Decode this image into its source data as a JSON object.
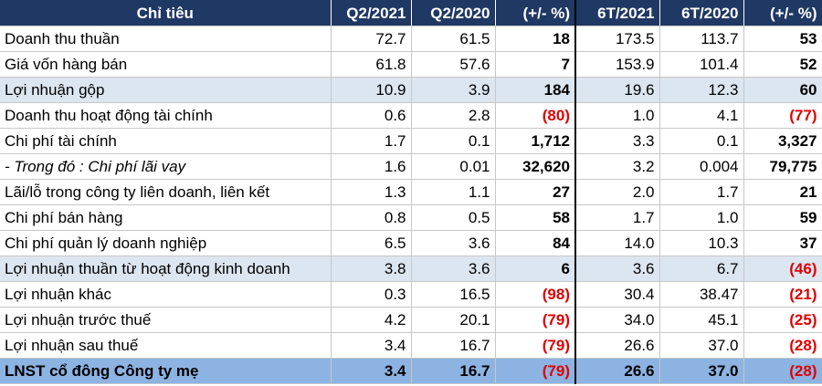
{
  "headers": [
    "Chỉ tiêu",
    "Q2/2021",
    "Q2/2020",
    "(+/- %)",
    "6T/2021",
    "6T/2020",
    "(+/- %)"
  ],
  "rows": [
    {
      "label": "Doanh thu thuần",
      "q2_2021": "72.7",
      "q2_2020": "61.5",
      "q_change": "18",
      "h1_2021": "173.5",
      "h1_2020": "113.7",
      "h_change": "53"
    },
    {
      "label": "Giá vốn hàng bán",
      "q2_2021": "61.8",
      "q2_2020": "57.6",
      "q_change": "7",
      "h1_2021": "153.9",
      "h1_2020": "101.4",
      "h_change": "52"
    },
    {
      "label": "Lợi nhuận gộp",
      "q2_2021": "10.9",
      "q2_2020": "3.9",
      "q_change": "184",
      "h1_2021": "19.6",
      "h1_2020": "12.3",
      "h_change": "60"
    },
    {
      "label": "Doanh thu hoạt động tài chính",
      "q2_2021": "0.6",
      "q2_2020": "2.8",
      "q_change": "(80)",
      "h1_2021": "1.0",
      "h1_2020": "4.1",
      "h_change": "(77)"
    },
    {
      "label": "Chi phí tài chính",
      "q2_2021": "1.7",
      "q2_2020": "0.1",
      "q_change": "1,712",
      "h1_2021": "3.3",
      "h1_2020": "0.1",
      "h_change": "3,327"
    },
    {
      "label": "- Trong đó : Chi phí lãi vay",
      "q2_2021": "1.6",
      "q2_2020": "0.01",
      "q_change": "32,620",
      "h1_2021": "3.2",
      "h1_2020": "0.004",
      "h_change": "79,775"
    },
    {
      "label": "Lãi/lỗ trong công ty liên doanh, liên kết",
      "q2_2021": "1.3",
      "q2_2020": "1.1",
      "q_change": "27",
      "h1_2021": "2.0",
      "h1_2020": "1.7",
      "h_change": "21"
    },
    {
      "label": "Chi phí bán hàng",
      "q2_2021": "0.8",
      "q2_2020": "0.5",
      "q_change": "58",
      "h1_2021": "1.7",
      "h1_2020": "1.0",
      "h_change": "59"
    },
    {
      "label": "Chi phí quản lý doanh nghiệp",
      "q2_2021": "6.5",
      "q2_2020": "3.6",
      "q_change": "84",
      "h1_2021": "14.0",
      "h1_2020": "10.3",
      "h_change": "37"
    },
    {
      "label": "Lợi nhuận thuần từ hoạt động kinh doanh",
      "q2_2021": "3.8",
      "q2_2020": "3.6",
      "q_change": "6",
      "h1_2021": "3.6",
      "h1_2020": "6.7",
      "h_change": "(46)"
    },
    {
      "label": "Lợi nhuận khác",
      "q2_2021": "0.3",
      "q2_2020": "16.5",
      "q_change": "(98)",
      "h1_2021": "30.4",
      "h1_2020": "38.47",
      "h_change": "(21)"
    },
    {
      "label": "Lợi nhuận trước thuế",
      "q2_2021": "4.2",
      "q2_2020": "20.1",
      "q_change": "(79)",
      "h1_2021": "34.0",
      "h1_2020": "45.1",
      "h_change": "(25)"
    },
    {
      "label": "Lợi nhuận sau thuế",
      "q2_2021": "3.4",
      "q2_2020": "16.7",
      "q_change": "(79)",
      "h1_2021": "26.6",
      "h1_2020": "37.0",
      "h_change": "(28)"
    },
    {
      "label": "LNST cổ đông Công ty mẹ",
      "q2_2021": "3.4",
      "q2_2020": "16.7",
      "q_change": "(79)",
      "h1_2021": "26.6",
      "h1_2020": "37.0",
      "h_change": "(28)"
    }
  ],
  "colors": {
    "header_bg": "#1f3864",
    "shaded_row_bg": "#dce6f1",
    "total_row_bg": "#8db3e2",
    "negative_text": "#e00000"
  }
}
